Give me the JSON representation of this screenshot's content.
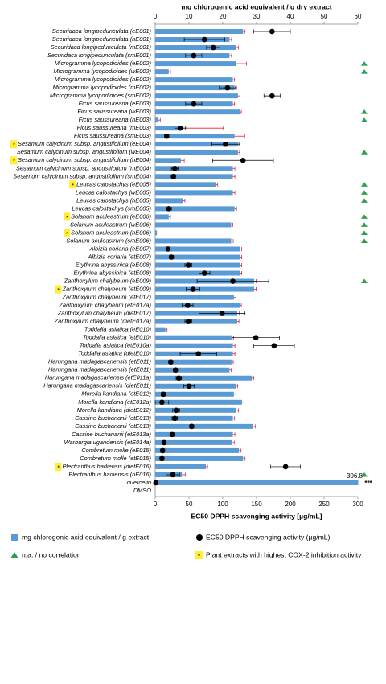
{
  "chart_data": {
    "type": "bar",
    "orientation": "horizontal",
    "x_label": "mg chlorogenic acid equivalent / g dry extract",
    "x2_label": "EC50 DPPH scavenging activity [µg/mL]",
    "xlim": [
      0,
      60
    ],
    "xticks": [
      0,
      10,
      20,
      30,
      40,
      50,
      60
    ],
    "x2lim": [
      0,
      300
    ],
    "x2ticks": [
      0,
      50,
      100,
      150,
      200,
      250,
      300
    ],
    "categories": [
      "Securidaca longipedunculata (eE001)",
      "Securidaca longipedunculata (hE001)",
      "Securidaca longipedunculata (mE001)",
      "Securidaca longipedunculata (smE001)",
      "Microgramma lycopodioides (eE002)",
      "Microgramma lycopodioides (wE002)",
      "Microgramma lycopodioides (hE002)",
      "Microgramma lycopodioides (mE002)",
      "Microgramma lycopodioides (smE002)",
      "Ficus saussureana (eE003)",
      "Ficus saussureana (wE003)",
      "Ficus saussureana (hE003)",
      "Ficus saussureana (mE003)",
      "Ficus saussureana (smE003)",
      "Sesamum calycinum subsp. angustifolium (eE004)",
      "Sesamum calycinum subsp. angustifolium (wE004)",
      "Sesamum calycinum subsp. angustifolium (hE004)",
      "Sesamum calycinum subsp. angustifolium (mE004)",
      "Sesamum calycinum subsp. angustifolium (smE004)",
      "Leucas calostachys (eE005)",
      "Leucas calostachys (wE005)",
      "Leucas calostachys (hE005)",
      "Leucas calostachys (smE005)",
      "Solanum aculeastrum (eE006)",
      "Solanum aculeastrum (wE006)",
      "Solanum aculeastrum (hE006)",
      "Solanum aculeastrum (smE006)",
      "Albizia coriaria (eE007)",
      "Albizia coriaria (etE007)",
      "Erythrina abyssinica (eE008)",
      "Erythrina abyssinica (etE008)",
      "Zanthoxylum chalybeum (eE009)",
      "Zanthoxylum chalybeum (etE009)",
      "Zanthoxylum chalybeum (etE017)",
      "Zanthoxylum chalybeum (etE017a)",
      "Zanthoxylum chalybeum (dietE017)",
      "Zanthoxylum chalybeum (dietE017a)",
      "Toddalia asiatica (eE010)",
      "Toddalia asiatica (etE010)",
      "Toddalia asiatica (etE010a)",
      "Toddalia asiatica (dietE010)",
      "Harungana madagascariensis (etE011)",
      "Harungana madagascariensis (etE011)",
      "Harungana madagascariensis (etE011a)",
      "Harungana madagascariensis (dietE011)",
      "Morella kandiana (etE012)",
      "Morella kandiana (etE012a)",
      "Morella kandiana (dietE012)",
      "Cassine buchananii (etE013)",
      "Cassine buchananii (etE013)",
      "Cassine buchananii (etE013a)",
      "Warburgia ugandensis (etE014a)",
      "Combretum molle (eE015)",
      "Combretum molle (etE015)",
      "Plectranthus hadiensis (dietE016)",
      "Plectranthus hadiensis (hE016)",
      "quercetin",
      "DMSO"
    ],
    "series": [
      {
        "name": "mg chlorogenic acid equivalent / g extract",
        "color": "#5b9bd5",
        "error_color": "#e8202a",
        "axis": "x",
        "values": [
          26,
          22,
          24,
          22,
          24,
          4,
          23,
          23.5,
          24.5,
          23,
          25,
          1,
          7.5,
          23.5,
          24.5,
          24.5,
          7.6,
          23,
          23,
          18,
          23,
          8.3,
          23.5,
          4,
          22.5,
          0.5,
          22.5,
          25,
          25,
          25,
          25,
          29.3,
          29.3,
          23.3,
          25,
          24.3,
          24.3,
          3,
          22.6,
          23,
          23,
          22.6,
          22,
          28.6,
          23.8,
          23.3,
          25.7,
          24,
          23,
          29,
          23,
          22.8,
          24.8,
          26,
          15,
          7.9,
          306.8,
          null
        ],
        "errors": [
          0.6,
          0.6,
          0.6,
          0.6,
          3,
          0.5,
          0.5,
          0.6,
          0.6,
          0.5,
          0.5,
          0.5,
          12.7,
          3,
          0.6,
          0.5,
          1,
          0.6,
          0.6,
          0.5,
          0.6,
          0.5,
          0.6,
          0.5,
          0.5,
          0.3,
          0.6,
          0.6,
          0.6,
          0.6,
          0.6,
          0.6,
          0.6,
          0.6,
          0.5,
          0.6,
          0.5,
          0.5,
          0.6,
          0.6,
          0.6,
          0.5,
          0.5,
          0.6,
          0.6,
          0.6,
          0.6,
          0.6,
          0.5,
          0.6,
          0.6,
          0.6,
          0.6,
          0.6,
          0.5,
          1,
          null,
          null
        ],
        "value_labels": [
          null,
          null,
          null,
          null,
          null,
          null,
          null,
          null,
          null,
          null,
          null,
          null,
          null,
          null,
          null,
          null,
          null,
          null,
          null,
          null,
          null,
          null,
          null,
          null,
          null,
          null,
          null,
          null,
          null,
          null,
          null,
          null,
          null,
          null,
          null,
          null,
          null,
          null,
          null,
          null,
          null,
          null,
          null,
          null,
          null,
          null,
          null,
          null,
          null,
          null,
          null,
          null,
          null,
          null,
          null,
          null,
          "306.8",
          null
        ]
      },
      {
        "name": "EC50 DPPH scavenging activity  (µg/mL)",
        "color": "#000000",
        "axis": "x2",
        "values": [
          173,
          73,
          86,
          57,
          null,
          null,
          null,
          107,
          173,
          57,
          null,
          null,
          37,
          17,
          104,
          null,
          130,
          29,
          27,
          null,
          null,
          null,
          20,
          null,
          null,
          null,
          null,
          19,
          24,
          49,
          73,
          115,
          56,
          null,
          48,
          99,
          49,
          null,
          149,
          176,
          64,
          23,
          30,
          35,
          50,
          12,
          10,
          31,
          29,
          54,
          25,
          13,
          11,
          10,
          193,
          26,
          1,
          null
        ],
        "errors": [
          27,
          30,
          10,
          12,
          null,
          null,
          null,
          12,
          12,
          12,
          null,
          null,
          8,
          3,
          20,
          null,
          45,
          5,
          3,
          null,
          null,
          null,
          4,
          null,
          null,
          null,
          null,
          3,
          3,
          5,
          8,
          53,
          10,
          null,
          8,
          34,
          5,
          null,
          35,
          30,
          27,
          3,
          3,
          4,
          8,
          3,
          10,
          5,
          4,
          3,
          3,
          3,
          3,
          3,
          22,
          10,
          null,
          null
        ]
      }
    ],
    "no_correlation": {
      "name": "n.a. / no correlation",
      "color": "#2e9e4f",
      "flags": [
        false,
        false,
        false,
        false,
        true,
        true,
        false,
        false,
        false,
        false,
        true,
        true,
        false,
        false,
        false,
        true,
        false,
        false,
        false,
        true,
        true,
        true,
        false,
        true,
        true,
        true,
        true,
        false,
        false,
        false,
        false,
        true,
        false,
        false,
        false,
        false,
        false,
        false,
        false,
        false,
        false,
        false,
        false,
        false,
        false,
        false,
        false,
        false,
        false,
        false,
        false,
        false,
        false,
        false,
        false,
        true,
        false,
        false
      ]
    },
    "highlight": {
      "name": "Plant extracts with highest COX-2 inhibition activity",
      "marker": "*",
      "color": "#ffee33",
      "flags": [
        false,
        false,
        false,
        false,
        false,
        false,
        false,
        false,
        false,
        false,
        false,
        false,
        false,
        false,
        true,
        false,
        true,
        false,
        false,
        true,
        false,
        false,
        false,
        true,
        false,
        true,
        false,
        false,
        false,
        false,
        false,
        false,
        true,
        false,
        false,
        false,
        false,
        false,
        false,
        false,
        false,
        false,
        false,
        false,
        false,
        false,
        false,
        false,
        false,
        false,
        false,
        false,
        false,
        false,
        true,
        false,
        false,
        false
      ]
    },
    "annotation": "***"
  }
}
